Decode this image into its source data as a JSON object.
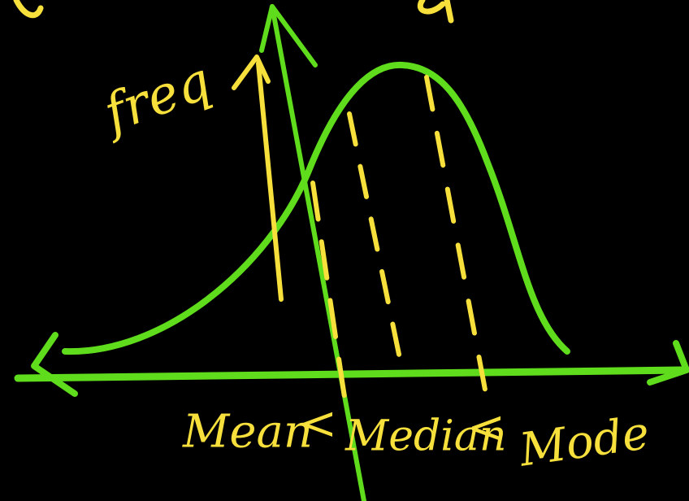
{
  "labels": {
    "y_axis": "freq",
    "mean": "Mean",
    "relation_1": "<",
    "median": "Median",
    "relation_2": "<",
    "mode": "Mode"
  }
}
